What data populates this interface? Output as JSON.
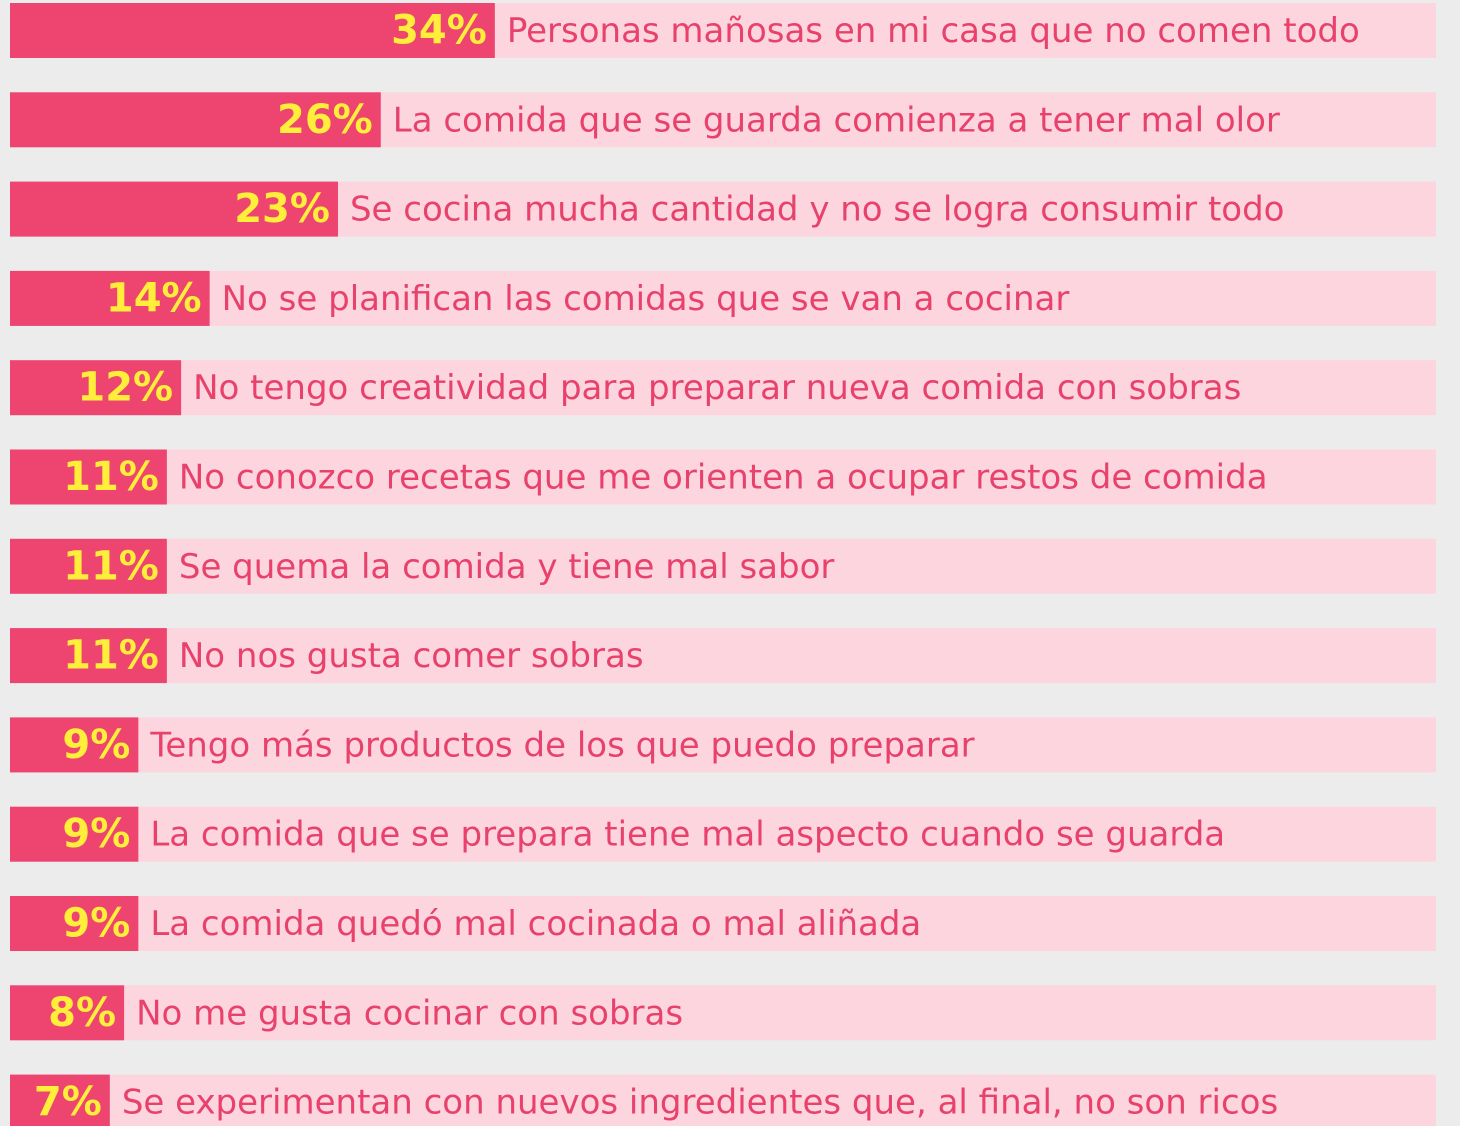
{
  "chart_data": {
    "type": "bar",
    "orientation": "horizontal",
    "categories": [
      "Personas mañosas en mi casa que no comen todo",
      "La comida que se guarda comienza a tener mal olor",
      "Se cocina mucha cantidad y no se logra consumir todo",
      "No se planifican las comidas que se van a cocinar",
      "No tengo creatividad para preparar nueva comida con sobras",
      "No conozco recetas que me orienten a ocupar restos de comida",
      "Se quema la comida y tiene mal sabor",
      "No nos gusta comer sobras",
      "Tengo más productos de los que puedo preparar",
      "La comida que se prepara tiene mal aspecto cuando se guarda",
      "La comida quedó mal cocinada o mal aliñada",
      "No me gusta cocinar con sobras",
      "Se experimentan con nuevos ingredientes que, al final, no son ricos"
    ],
    "values": [
      34,
      26,
      23,
      14,
      12,
      11,
      11,
      11,
      9,
      9,
      9,
      8,
      7
    ],
    "value_labels": [
      "34%",
      "26%",
      "23%",
      "14%",
      "12%",
      "11%",
      "11%",
      "11%",
      "9%",
      "9%",
      "9%",
      "8%",
      "7%"
    ],
    "color": "#ee4470",
    "track_color": "#fcd5de",
    "xlim": [
      0,
      100
    ]
  }
}
